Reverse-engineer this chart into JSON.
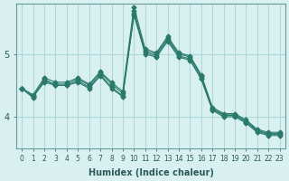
{
  "xlabel": "Humidex (Indice chaleur)",
  "ylabel": "",
  "bg_color": "#d8f0f0",
  "grid_color": "#b0d8d8",
  "line_color": "#2a7a6a",
  "x_values": [
    0,
    1,
    2,
    3,
    4,
    5,
    6,
    7,
    8,
    9,
    10,
    11,
    12,
    13,
    14,
    15,
    16,
    17,
    18,
    19,
    20,
    21,
    22,
    23
  ],
  "series": [
    [
      4.45,
      4.35,
      4.62,
      4.55,
      4.55,
      4.62,
      4.52,
      4.72,
      4.55,
      4.4,
      5.75,
      5.08,
      5.02,
      5.28,
      5.02,
      4.97,
      4.67,
      4.15,
      4.05,
      4.05,
      3.95,
      3.8,
      3.75,
      3.75
    ],
    [
      4.45,
      4.3,
      4.6,
      4.5,
      4.5,
      4.57,
      4.47,
      4.67,
      4.47,
      4.33,
      5.68,
      5.03,
      4.97,
      5.23,
      4.97,
      4.92,
      4.62,
      4.12,
      4.02,
      4.02,
      3.92,
      3.77,
      3.72,
      3.72
    ],
    [
      4.45,
      4.33,
      4.57,
      4.52,
      4.52,
      4.6,
      4.5,
      4.7,
      4.52,
      4.37,
      5.65,
      5.05,
      5.0,
      5.25,
      5.0,
      4.95,
      4.65,
      4.13,
      4.03,
      4.03,
      3.93,
      3.78,
      3.73,
      3.73
    ],
    [
      4.45,
      4.32,
      4.55,
      4.5,
      4.5,
      4.55,
      4.45,
      4.65,
      4.45,
      4.32,
      5.62,
      5.0,
      4.95,
      5.2,
      4.95,
      4.9,
      4.6,
      4.1,
      4.0,
      4.0,
      3.9,
      3.75,
      3.7,
      3.7
    ]
  ],
  "ylim": [
    3.5,
    5.8
  ],
  "yticks": [
    4,
    5
  ],
  "xlim": [
    -0.5,
    23.5
  ]
}
